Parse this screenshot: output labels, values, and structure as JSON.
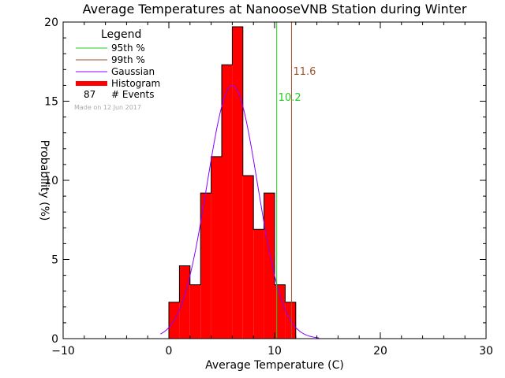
{
  "chart_data": {
    "type": "bar",
    "title": "Average Temperatures at NanooseVNB Station during Winter",
    "xlabel": "Average Temperature (C)",
    "ylabel": "Probability (%)",
    "xlim": [
      -10,
      30
    ],
    "ylim": [
      0,
      20
    ],
    "x_ticks": [
      "−10",
      "0",
      "10",
      "20",
      "30"
    ],
    "y_ticks": [
      "0",
      "5",
      "10",
      "15",
      "20"
    ],
    "bin_width": 1.0,
    "bins": [
      {
        "x0": 0.0,
        "value": 2.3
      },
      {
        "x0": 1.0,
        "value": 4.6
      },
      {
        "x0": 2.0,
        "value": 3.4
      },
      {
        "x0": 3.0,
        "value": 9.2
      },
      {
        "x0": 4.0,
        "value": 11.5
      },
      {
        "x0": 5.0,
        "value": 17.3
      },
      {
        "x0": 6.0,
        "value": 19.7
      },
      {
        "x0": 7.0,
        "value": 10.3
      },
      {
        "x0": 8.0,
        "value": 6.9
      },
      {
        "x0": 9.0,
        "value": 9.2
      },
      {
        "x0": 10.0,
        "value": 3.4
      },
      {
        "x0": 11.0,
        "value": 2.3
      }
    ],
    "gaussian": {
      "mean": 6.0,
      "sd": 2.4,
      "peak": 16.0,
      "x_range": [
        -0.8,
        14.2
      ]
    },
    "percentile_lines": [
      {
        "label": "95th %",
        "value": 10.2,
        "value_label": "10.2",
        "color": "#22cc22"
      },
      {
        "label": "99th %",
        "value": 11.6,
        "value_label": "11.6",
        "color": "#a0522d"
      }
    ],
    "legend": {
      "title": "Legend",
      "position": "top-left",
      "entries": [
        {
          "label": "95th %",
          "color": "#22cc22",
          "style": "line"
        },
        {
          "label": "99th %",
          "color": "#a0522d",
          "style": "line"
        },
        {
          "label": "Gaussian",
          "color": "#8b00ff",
          "style": "line"
        },
        {
          "label": "Histogram",
          "color": "#ff0000",
          "style": "thick"
        }
      ],
      "events_count": "87",
      "events_label": "# Events",
      "made_on": "Made on 12 Jun 2017"
    },
    "colors": {
      "histogram": "#ff0000",
      "gaussian": "#8b00ff"
    }
  }
}
